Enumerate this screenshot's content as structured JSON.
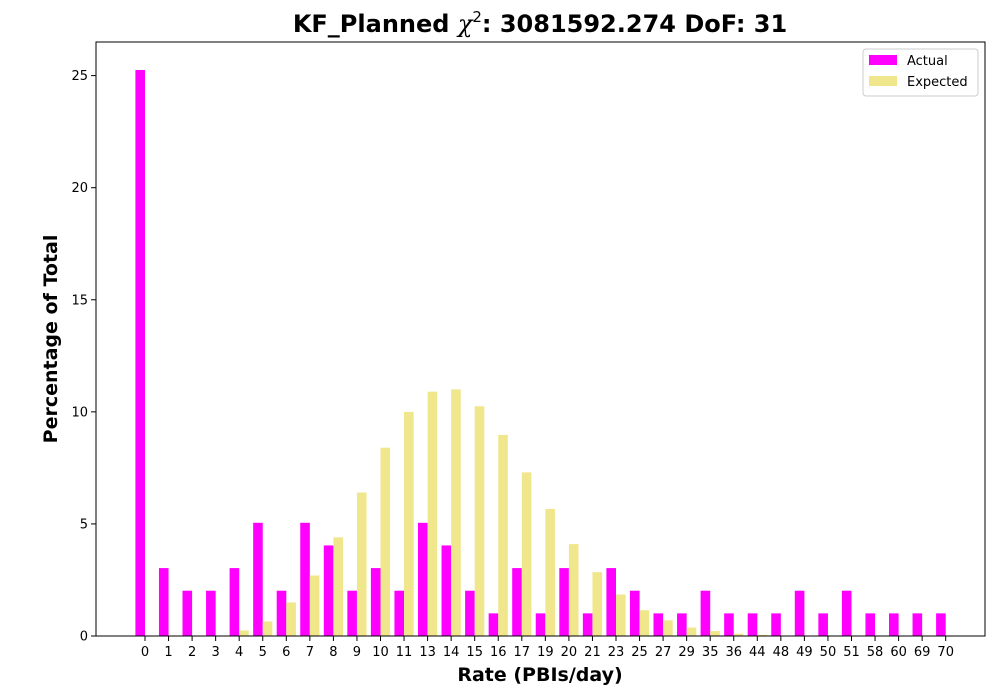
{
  "chart_data": {
    "type": "bar",
    "title_prefix": "KF_Planned ",
    "title_chi": "χ",
    "title_sup": "2",
    "title_suffix": ": 3081592.274 DoF: 31",
    "xlabel": "Rate (PBIs/day)",
    "ylabel": "Percentage of Total",
    "categories": [
      "0",
      "1",
      "2",
      "3",
      "4",
      "5",
      "6",
      "7",
      "8",
      "9",
      "10",
      "11",
      "13",
      "14",
      "15",
      "16",
      "17",
      "19",
      "20",
      "21",
      "23",
      "25",
      "27",
      "29",
      "35",
      "36",
      "44",
      "48",
      "49",
      "50",
      "51",
      "58",
      "60",
      "69",
      "70"
    ],
    "series": [
      {
        "name": "Actual",
        "color": "#ff00ff",
        "values": [
          25.25,
          3.03,
          2.02,
          2.02,
          3.03,
          5.05,
          2.02,
          5.05,
          4.04,
          2.02,
          3.03,
          2.02,
          5.05,
          4.04,
          2.02,
          1.01,
          3.03,
          1.01,
          3.03,
          1.01,
          3.03,
          2.02,
          1.01,
          1.01,
          2.02,
          1.01,
          1.01,
          1.01,
          2.02,
          1.01,
          2.02,
          1.01,
          1.01,
          1.01,
          1.01
        ]
      },
      {
        "name": "Expected",
        "color": "#f0e68c",
        "values": [
          0,
          0,
          0,
          0,
          0.25,
          0.65,
          1.5,
          2.7,
          4.4,
          6.4,
          8.4,
          10.0,
          10.9,
          11.0,
          10.25,
          8.97,
          7.3,
          5.67,
          4.1,
          2.85,
          1.85,
          1.15,
          0.7,
          0.38,
          0.22,
          0.1,
          0.05,
          0.02,
          0,
          0,
          0,
          0,
          0,
          0,
          0
        ]
      }
    ],
    "ylim": [
      0,
      26.5
    ],
    "yticks": [
      0,
      5,
      10,
      15,
      20,
      25
    ],
    "grid": false,
    "legend_position": "top-right"
  }
}
